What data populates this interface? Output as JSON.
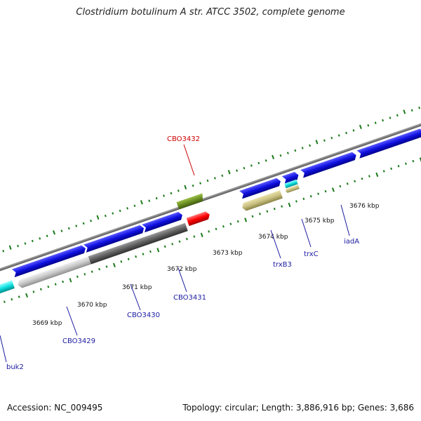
{
  "title": "Clostridium botulinum A str. ATCC 3502, complete genome",
  "accession": "Accession: NC_009495",
  "topology": "Topology: circular; Length: 3,886,916 bp; Genes: 3,686",
  "colors": {
    "backbone": "#808080",
    "tick": "#1a7a1a",
    "gene_blue": "#1010e0",
    "gene_cyan": "#10e0e0",
    "gene_olive": "#6b8e23",
    "gene_red": "#ff0000",
    "gene_khaki": "#c8c080",
    "gene_silver": "#c0c0c0",
    "gene_dark": "#606060",
    "label_blue": "#1a1aa0",
    "label_red": "#cc0000"
  },
  "kbp_labels": [
    "3669 kbp",
    "3670 kbp",
    "3671 kbp",
    "3672 kbp",
    "3673 kbp",
    "3674 kbp",
    "3675 kbp",
    "3676 kbp"
  ],
  "gene_labels": [
    {
      "text": "buk2",
      "color": "label_blue"
    },
    {
      "text": "CBO3429",
      "color": "label_blue"
    },
    {
      "text": "CBO3430",
      "color": "label_blue"
    },
    {
      "text": "CBO3431",
      "color": "label_blue"
    },
    {
      "text": "CBO3432",
      "color": "label_red"
    },
    {
      "text": "trxB3",
      "color": "label_blue"
    },
    {
      "text": "trxC",
      "color": "label_blue"
    },
    {
      "text": "iadA",
      "color": "label_blue"
    }
  ]
}
